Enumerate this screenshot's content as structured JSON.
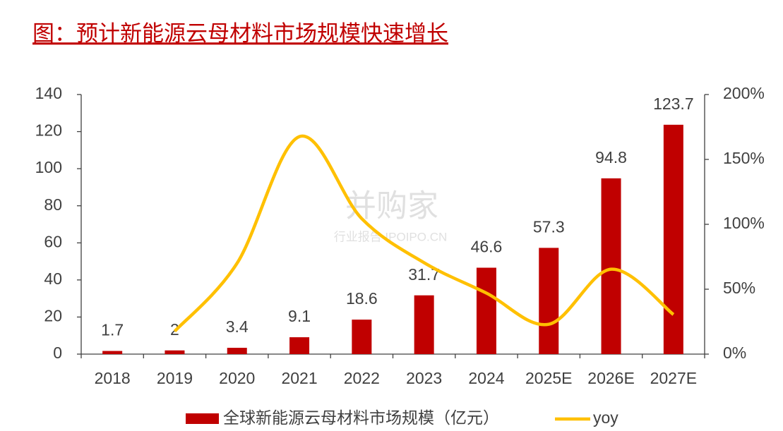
{
  "chart_data": {
    "type": "bar",
    "title": "图：预计新能源云母材料市场规模快速增长",
    "watermark": {
      "title": "并购家",
      "subtitle": "行业报告 IPOIPO.CN"
    },
    "categories": [
      "2018",
      "2019",
      "2020",
      "2021",
      "2022",
      "2023",
      "2024",
      "2025E",
      "2026E",
      "2027E"
    ],
    "series": [
      {
        "name": "全球新能源云母材料市场规模（亿元）",
        "type": "bar",
        "color": "#c00000",
        "values": [
          1.7,
          2,
          3.4,
          9.1,
          18.6,
          31.7,
          46.6,
          57.3,
          94.8,
          123.7
        ]
      },
      {
        "name": "yoy",
        "type": "line",
        "axis": "y2",
        "color": "#ffc000",
        "values": [
          null,
          17.6,
          70,
          167.6,
          104.4,
          70.4,
          47,
          23,
          65.4,
          30.5
        ]
      }
    ],
    "ylim": [
      0,
      140
    ],
    "yticks": [
      0,
      20,
      40,
      60,
      80,
      100,
      120,
      140
    ],
    "y2lim": [
      0,
      200
    ],
    "y2ticks": [
      {
        "value": 0,
        "label": "0%"
      },
      {
        "value": 50,
        "label": "50%"
      },
      {
        "value": 100,
        "label": "100%"
      },
      {
        "value": 150,
        "label": "150%"
      },
      {
        "value": 200,
        "label": "200%"
      }
    ]
  }
}
